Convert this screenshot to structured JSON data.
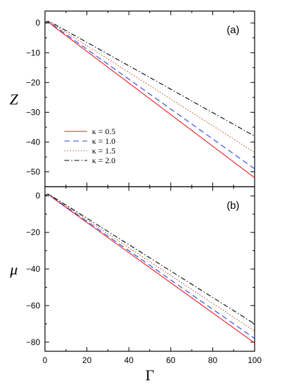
{
  "chart_data": [
    {
      "type": "line",
      "panel_label": "(a)",
      "xlabel": "",
      "ylabel": "Z",
      "xlim": [
        0,
        100
      ],
      "ylim": [
        -55,
        4
      ],
      "xticks": [
        0,
        20,
        40,
        60,
        80,
        100
      ],
      "yticks": [
        0,
        -10,
        -20,
        -30,
        -40,
        -50
      ],
      "ytick_labels": [
        "0",
        "−10",
        "−20",
        "−30",
        "−40",
        "−50"
      ],
      "legend_position": "center-left",
      "series": [
        {
          "name": "κ = 0.5",
          "color": "#e8191f",
          "dash": "solid",
          "x": [
            0,
            1,
            2,
            5,
            100
          ],
          "y": [
            0,
            0.4,
            0.1,
            -1.6,
            -52.0
          ]
        },
        {
          "name": "κ = 1.0",
          "color": "#2040e0",
          "dash": "dashed",
          "x": [
            0,
            1,
            2,
            5,
            100
          ],
          "y": [
            0,
            0.5,
            0.3,
            -1.3,
            -49.0
          ]
        },
        {
          "name": "κ = 1.5",
          "color": "#b3541e",
          "dash": "dotted",
          "x": [
            0,
            1,
            2,
            5,
            100
          ],
          "y": [
            0,
            0.5,
            0.4,
            -0.9,
            -43.5
          ]
        },
        {
          "name": "κ = 2.0",
          "color": "#000000",
          "dash": "dashdot",
          "x": [
            0,
            1,
            2,
            5,
            100
          ],
          "y": [
            0,
            0.5,
            0.5,
            -0.6,
            -38.0
          ]
        }
      ]
    },
    {
      "type": "line",
      "panel_label": "(b)",
      "xlabel": "Γ",
      "ylabel": "μ",
      "xlim": [
        0,
        100
      ],
      "ylim": [
        -85,
        5
      ],
      "xticks": [
        0,
        20,
        40,
        60,
        80,
        100
      ],
      "xtick_labels": [
        "0",
        "20",
        "40",
        "60",
        "80",
        "100"
      ],
      "yticks": [
        0,
        -20,
        -40,
        -60,
        -80
      ],
      "ytick_labels": [
        "0",
        "−20",
        "−40",
        "−60",
        "−80"
      ],
      "series": [
        {
          "name": "κ = 0.5",
          "color": "#e8191f",
          "dash": "solid",
          "x": [
            0,
            1,
            2,
            5,
            100
          ],
          "y": [
            0,
            0.8,
            0.5,
            -2.2,
            -80.5
          ]
        },
        {
          "name": "κ = 1.0",
          "color": "#2040e0",
          "dash": "dashed",
          "x": [
            0,
            1,
            2,
            5,
            100
          ],
          "y": [
            0,
            0.8,
            0.6,
            -2.0,
            -78.0
          ]
        },
        {
          "name": "κ = 1.5",
          "color": "#b3541e",
          "dash": "dotted",
          "x": [
            0,
            1,
            2,
            5,
            100
          ],
          "y": [
            0,
            0.8,
            0.7,
            -1.7,
            -74.0
          ]
        },
        {
          "name": "κ = 2.0",
          "color": "#000000",
          "dash": "dashdot",
          "x": [
            0,
            1,
            2,
            5,
            100
          ],
          "y": [
            0,
            0.8,
            0.8,
            -1.4,
            -70.0
          ]
        }
      ]
    }
  ]
}
